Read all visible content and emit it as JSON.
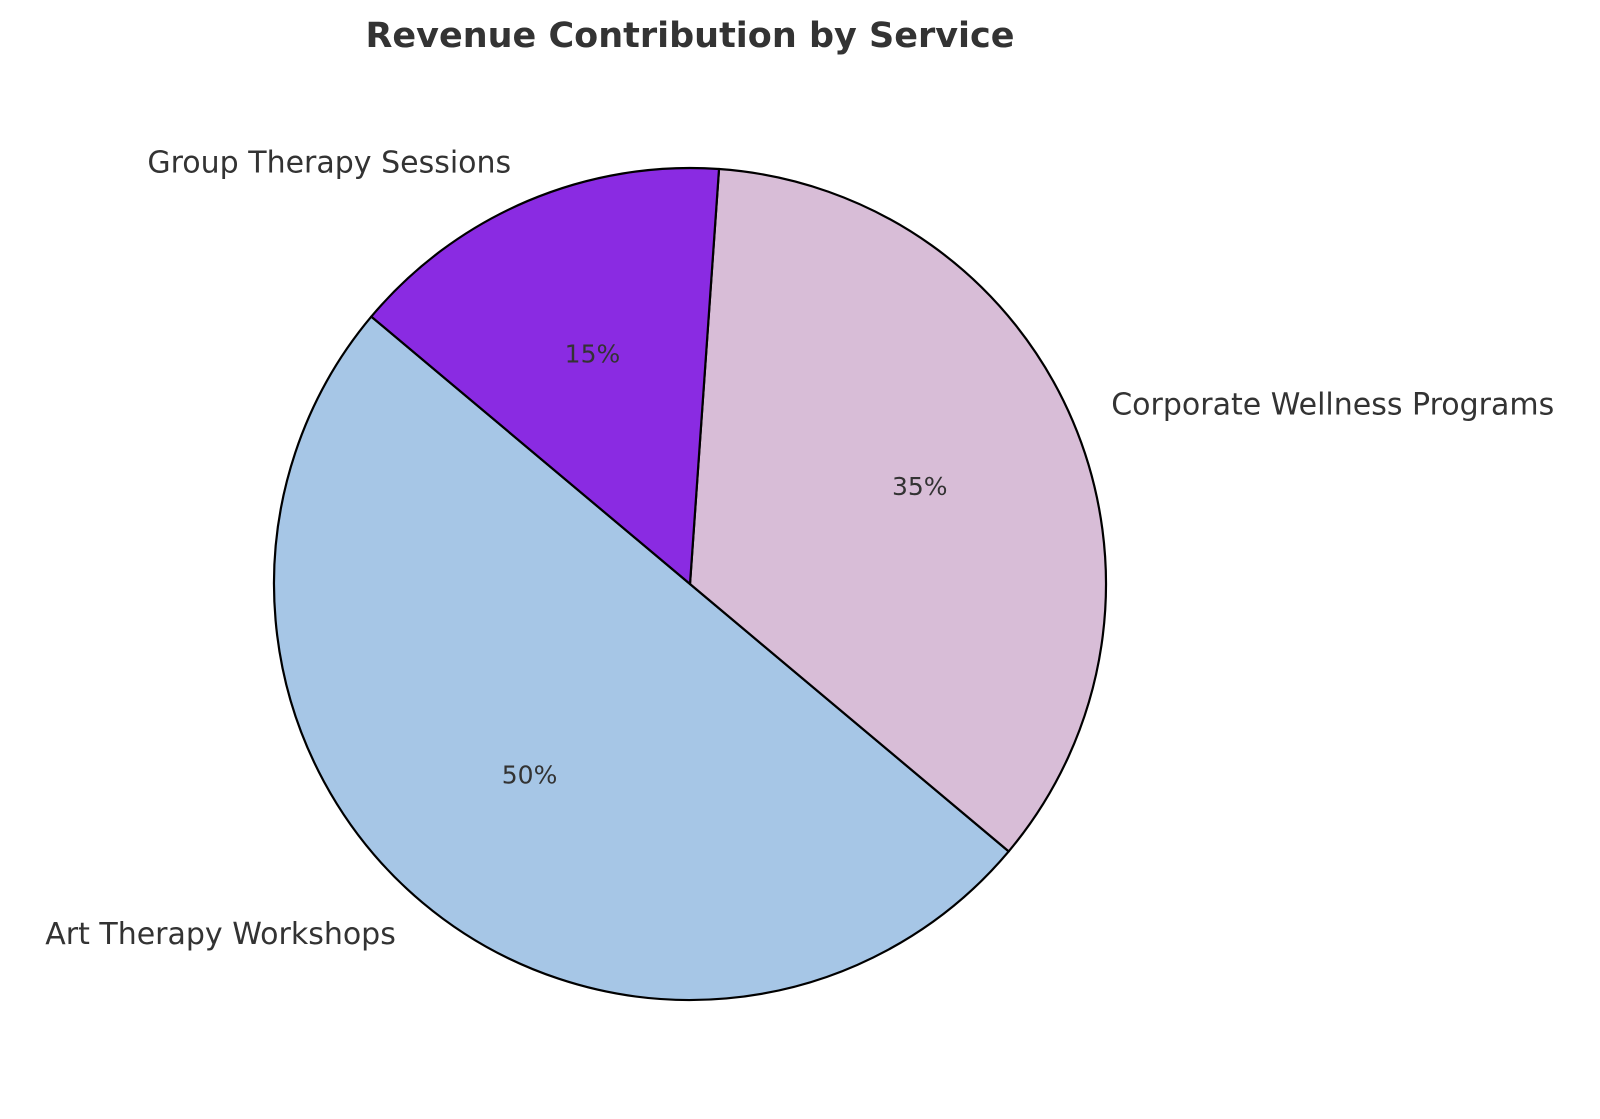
{
  "chart_data": {
    "type": "pie",
    "title": "Revenue Contribution by Service",
    "categories": [
      "Art Therapy Workshops",
      "Corporate Wellness Programs",
      "Group Therapy Sessions"
    ],
    "values": [
      50,
      35,
      15
    ],
    "value_labels": [
      "50%",
      "35%",
      "15%"
    ],
    "colors": [
      "#a6c6e6",
      "#d8bdd7",
      "#8a2be2"
    ],
    "edge_color": "#000000",
    "start_angle_deg": 140,
    "direction": "counterclockwise",
    "legend": "none",
    "grid": false
  }
}
